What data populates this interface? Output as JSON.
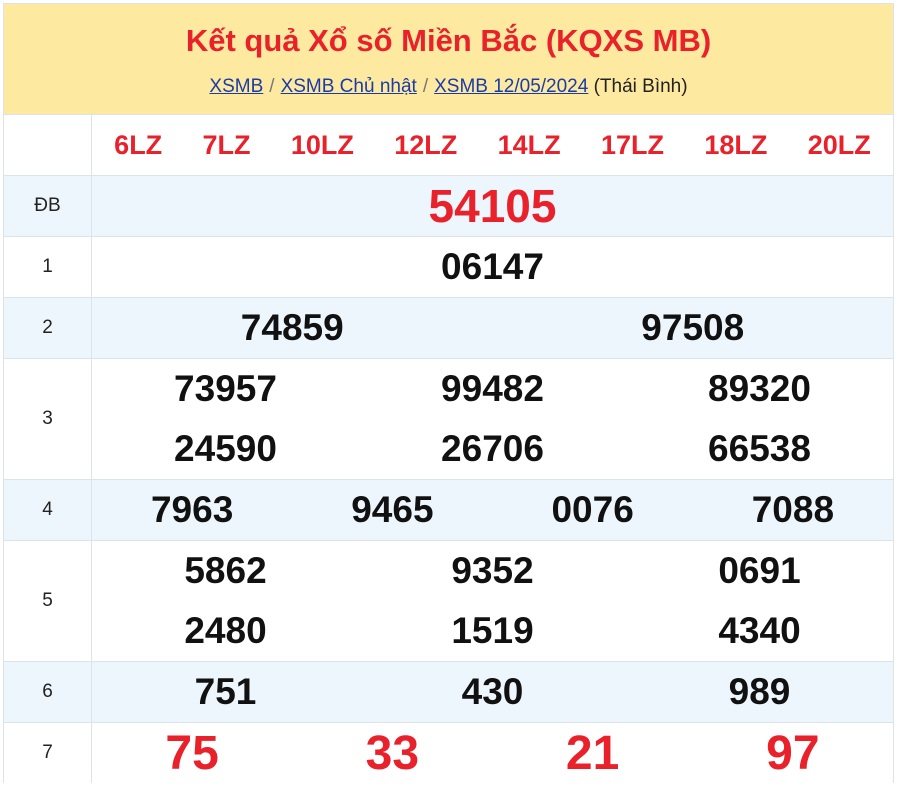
{
  "header": {
    "title": "Kết quả Xổ số Miền Bắc (KQXS MB)",
    "breadcrumb": [
      {
        "label": "XSMB"
      },
      {
        "label": "XSMB Chủ nhật"
      },
      {
        "label": "XSMB 12/05/2024"
      }
    ],
    "separator": "/",
    "province": "(Thái Bình)"
  },
  "codes": [
    "6LZ",
    "7LZ",
    "10LZ",
    "12LZ",
    "14LZ",
    "17LZ",
    "18LZ",
    "20LZ"
  ],
  "prizes": [
    {
      "label": "ĐB",
      "rows": [
        [
          "54105"
        ]
      ]
    },
    {
      "label": "1",
      "rows": [
        [
          "06147"
        ]
      ]
    },
    {
      "label": "2",
      "rows": [
        [
          "74859",
          "97508"
        ]
      ]
    },
    {
      "label": "3",
      "rows": [
        [
          "73957",
          "99482",
          "89320"
        ],
        [
          "24590",
          "26706",
          "66538"
        ]
      ]
    },
    {
      "label": "4",
      "rows": [
        [
          "7963",
          "9465",
          "0076",
          "7088"
        ]
      ]
    },
    {
      "label": "5",
      "rows": [
        [
          "5862",
          "9352",
          "0691"
        ],
        [
          "2480",
          "1519",
          "4340"
        ]
      ]
    },
    {
      "label": "6",
      "rows": [
        [
          "751",
          "430",
          "989"
        ]
      ]
    },
    {
      "label": "7",
      "rows": [
        [
          "75",
          "33",
          "21",
          "97"
        ]
      ]
    }
  ],
  "colors": {
    "accent": "#e8212a",
    "header_bg": "#fee9a1",
    "alt_row": "#eef6fd",
    "link": "#1a3ca6"
  }
}
